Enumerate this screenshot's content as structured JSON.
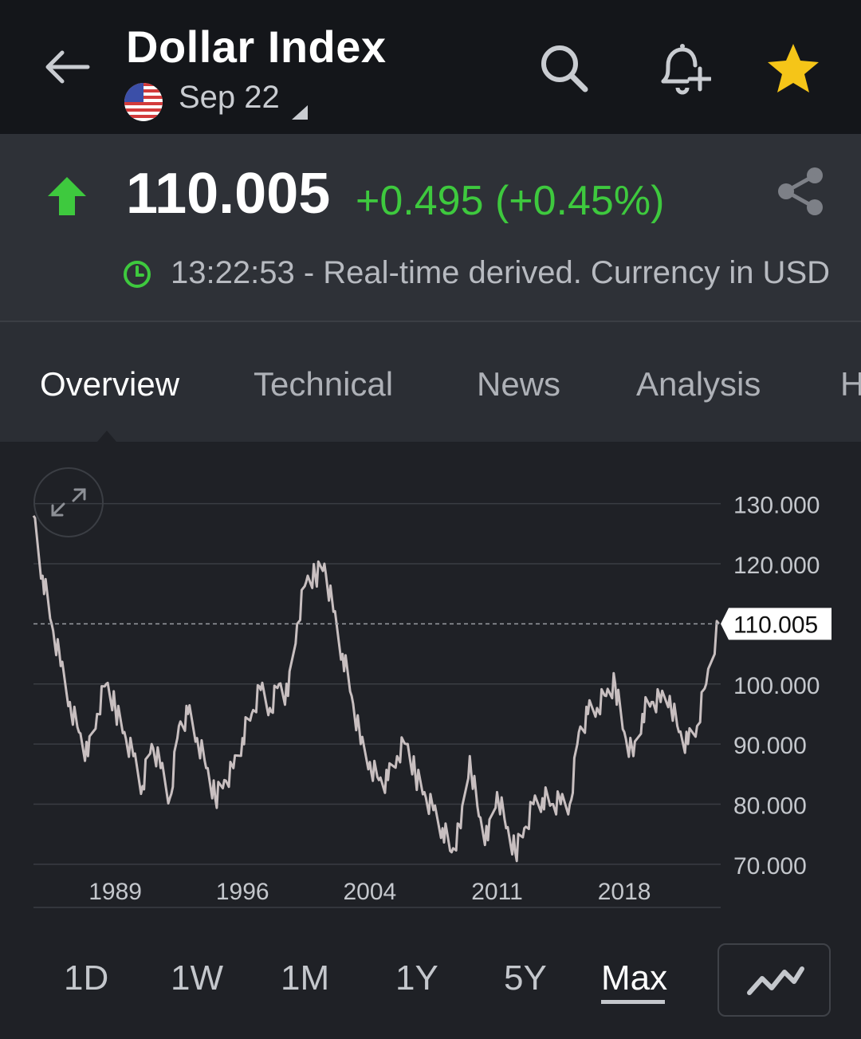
{
  "header": {
    "title": "Dollar Index",
    "subtitle": "Sep 22"
  },
  "quote": {
    "price": "110.005",
    "change": "+0.495 (+0.45%)",
    "timestamp": "13:22:53 - Real-time derived. Currency in USD",
    "direction": "up",
    "change_color": "#3ec93e"
  },
  "tabs": [
    {
      "label": "Overview",
      "active": true
    },
    {
      "label": "Technical"
    },
    {
      "label": "News"
    },
    {
      "label": "Analysis"
    },
    {
      "label": "H"
    }
  ],
  "ranges": [
    {
      "label": "1D"
    },
    {
      "label": "1W"
    },
    {
      "label": "1M"
    },
    {
      "label": "1Y"
    },
    {
      "label": "5Y"
    },
    {
      "label": "Max",
      "active": true
    }
  ],
  "chart_data": {
    "type": "line",
    "x": [
      1985.0,
      1985.5,
      1986.0,
      1986.5,
      1987.0,
      1987.5,
      1988.0,
      1988.5,
      1989.0,
      1989.5,
      1990.0,
      1990.5,
      1991.0,
      1991.5,
      1992.0,
      1992.5,
      1993.0,
      1993.5,
      1994.0,
      1994.5,
      1995.0,
      1995.5,
      1996.0,
      1996.5,
      1997.0,
      1997.5,
      1998.0,
      1998.5,
      1999.0,
      1999.5,
      2000.0,
      2000.5,
      2001.0,
      2001.5,
      2002.0,
      2002.5,
      2003.0,
      2003.5,
      2004.0,
      2004.5,
      2005.0,
      2005.5,
      2006.0,
      2006.5,
      2007.0,
      2007.5,
      2008.0,
      2008.5,
      2009.0,
      2009.5,
      2010.0,
      2010.5,
      2011.0,
      2011.5,
      2012.0,
      2012.5,
      2013.0,
      2013.5,
      2014.0,
      2014.5,
      2015.0,
      2015.5,
      2016.0,
      2016.5,
      2017.0,
      2017.5,
      2018.0,
      2018.5,
      2019.0,
      2019.5,
      2020.0,
      2020.5,
      2021.0,
      2021.5,
      2022.0,
      2022.7
    ],
    "y": [
      128,
      118,
      110,
      103,
      97,
      92,
      88,
      95,
      100,
      96,
      92,
      88,
      83,
      90,
      86,
      81,
      93,
      95,
      91,
      86,
      81,
      84,
      86,
      91,
      95,
      99,
      96,
      100,
      98,
      110,
      117,
      118,
      120,
      112,
      105,
      98,
      90,
      87,
      84,
      84,
      88,
      90,
      85,
      82,
      79,
      76,
      72,
      76,
      88,
      78,
      74,
      82,
      76,
      72,
      76,
      80,
      81,
      80,
      80,
      80,
      92,
      95,
      96,
      98,
      100,
      92,
      88,
      95,
      97,
      97,
      98,
      92,
      90,
      93,
      100,
      110.005
    ],
    "last_label": "110.005",
    "y_ticks": [
      "130.000",
      "120.000",
      "110.005",
      "100.000",
      "90.000",
      "80.000",
      "70.000"
    ],
    "y_tick_values": [
      130,
      120,
      110.005,
      100,
      90,
      80,
      70
    ],
    "x_ticks": [
      "1989",
      "1996",
      "2004",
      "2011",
      "2018"
    ],
    "x_tick_values": [
      1989.5,
      1996.5,
      2003.5,
      2010.5,
      2017.5
    ],
    "ylim": [
      66,
      135
    ],
    "xlim": [
      1985.0,
      2022.8
    ],
    "grid": true,
    "line_color": "#c8bfc0"
  }
}
